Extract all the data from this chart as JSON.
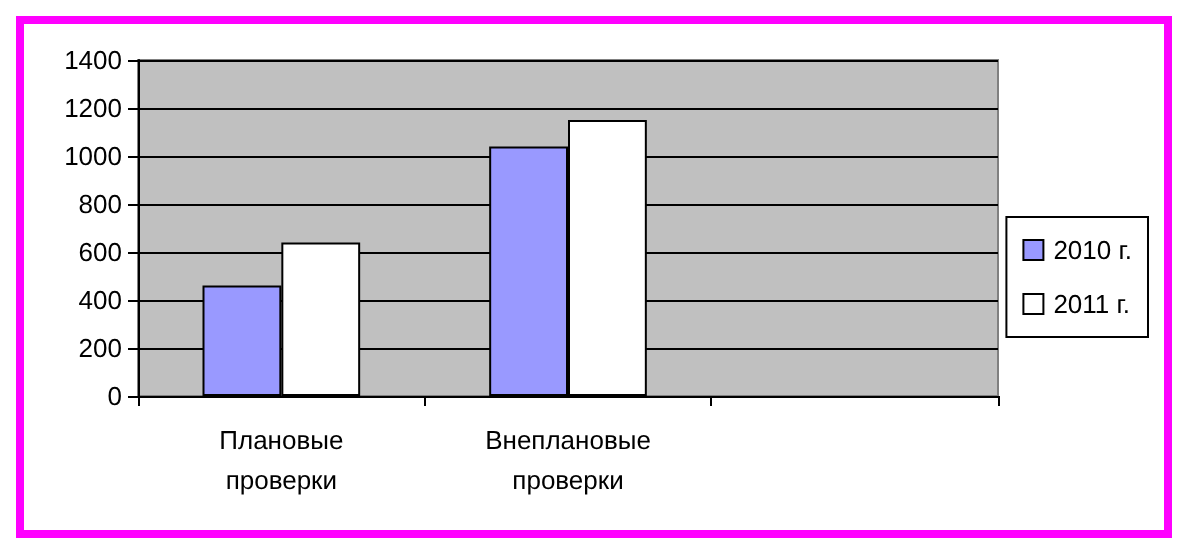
{
  "chart_data": {
    "type": "bar",
    "categories": [
      "Плановые проверки",
      "Внеплановые проверки",
      null
    ],
    "series": [
      {
        "name": "2010 г.",
        "color": "#9999ff",
        "values": [
          460,
          1040,
          null
        ]
      },
      {
        "name": "2011 г.",
        "color": "#ffffff",
        "values": [
          640,
          1150,
          null
        ]
      }
    ],
    "ylim": [
      0,
      1400
    ],
    "yticks": [
      0,
      200,
      400,
      600,
      800,
      1000,
      1200,
      1400
    ],
    "grid": "y",
    "legend": "right"
  }
}
